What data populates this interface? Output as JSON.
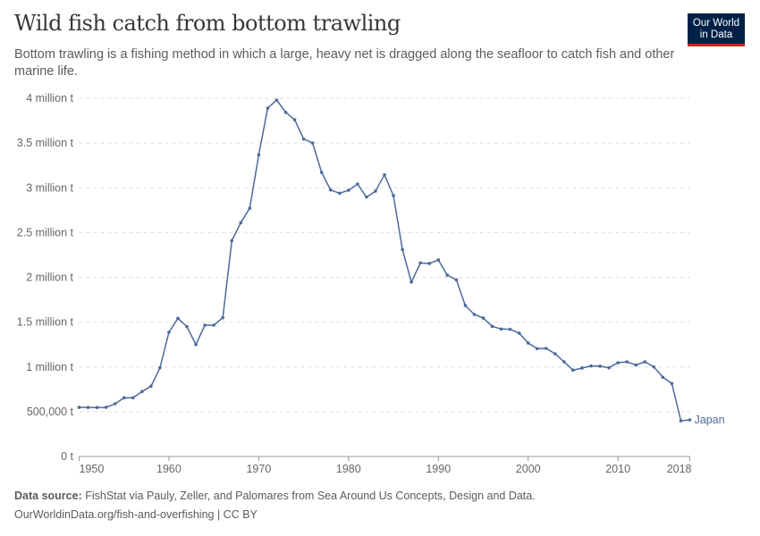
{
  "header": {
    "title": "Wild fish catch from bottom trawling",
    "subtitle": "Bottom trawling is a fishing method in which a large, heavy net is dragged along the seafloor to catch fish and other marine life.",
    "logo": "Our World in Data",
    "logo_line1": "Our World",
    "logo_line2": "in Data"
  },
  "footer": {
    "source_label": "Data source:",
    "source": "FishStat via Pauly, Zeller, and Palomares from Sea Around Us Concepts, Design and Data.",
    "url": "OurWorldinData.org/fish-and-overfishing | CC BY"
  },
  "chart_data": {
    "type": "line",
    "title": "Wild fish catch from bottom trawling",
    "ylim": [
      0,
      4000000
    ],
    "xlim": [
      1950,
      2018
    ],
    "grid": "horizontal dashed",
    "y_ticks": [
      {
        "v": 0,
        "label": "0 t"
      },
      {
        "v": 500000,
        "label": "500,000 t"
      },
      {
        "v": 1000000,
        "label": "1 million t"
      },
      {
        "v": 1500000,
        "label": "1.5 million t"
      },
      {
        "v": 2000000,
        "label": "2 million t"
      },
      {
        "v": 2500000,
        "label": "2.5 million t"
      },
      {
        "v": 3000000,
        "label": "3 million t"
      },
      {
        "v": 3500000,
        "label": "3.5 million t"
      },
      {
        "v": 4000000,
        "label": "4 million t"
      }
    ],
    "x_ticks": [
      {
        "v": 1950,
        "label": "1950"
      },
      {
        "v": 1960,
        "label": "1960"
      },
      {
        "v": 1970,
        "label": "1970"
      },
      {
        "v": 1980,
        "label": "1980"
      },
      {
        "v": 1990,
        "label": "1990"
      },
      {
        "v": 2000,
        "label": "2000"
      },
      {
        "v": 2010,
        "label": "2010"
      },
      {
        "v": 2018,
        "label": "2018"
      }
    ],
    "series": [
      {
        "name": "Japan",
        "color": "#4c6a9c",
        "x": [
          1950,
          1951,
          1952,
          1953,
          1954,
          1955,
          1956,
          1957,
          1958,
          1959,
          1960,
          1961,
          1962,
          1963,
          1964,
          1965,
          1966,
          1967,
          1968,
          1969,
          1970,
          1971,
          1972,
          1973,
          1974,
          1975,
          1976,
          1977,
          1978,
          1979,
          1980,
          1981,
          1982,
          1983,
          1984,
          1985,
          1986,
          1987,
          1988,
          1989,
          1990,
          1991,
          1992,
          1993,
          1994,
          1995,
          1996,
          1997,
          1998,
          1999,
          2000,
          2001,
          2002,
          2003,
          2004,
          2005,
          2006,
          2007,
          2008,
          2009,
          2010,
          2011,
          2012,
          2013,
          2014,
          2015,
          2016,
          2017,
          2018
        ],
        "y": [
          549000,
          548000,
          547000,
          549000,
          588000,
          655000,
          655000,
          725000,
          785000,
          990000,
          1387000,
          1543000,
          1450000,
          1250000,
          1466000,
          1466000,
          1550000,
          2410000,
          2610000,
          2773000,
          3368000,
          3890000,
          3980000,
          3843000,
          3760000,
          3545000,
          3500000,
          3172000,
          2976000,
          2940000,
          2973000,
          3042000,
          2896000,
          2963000,
          3145000,
          2913000,
          2311000,
          1948000,
          2161000,
          2155000,
          2195000,
          2025000,
          1972000,
          1686000,
          1586000,
          1546000,
          1453000,
          1423000,
          1420000,
          1377000,
          1267000,
          1204000,
          1207000,
          1147000,
          1057000,
          964000,
          988000,
          1011000,
          1008000,
          991000,
          1047000,
          1057000,
          1021000,
          1057000,
          1000000,
          885000,
          815000,
          399000,
          409000
        ]
      }
    ]
  }
}
